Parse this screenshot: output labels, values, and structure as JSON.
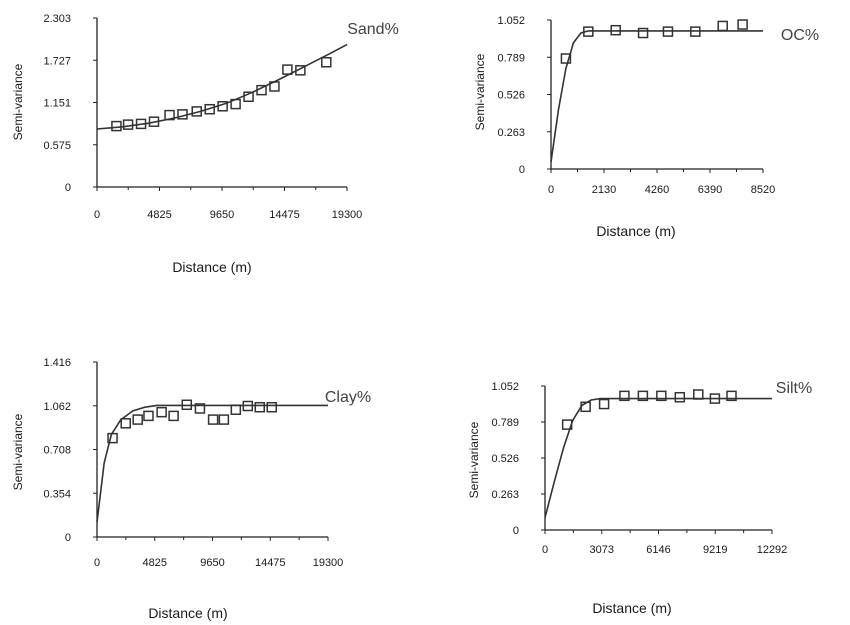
{
  "chart_data": [
    {
      "type": "scatter",
      "title": "Sand%",
      "xlabel": "Distance (m)",
      "ylabel": "Semi-variance",
      "xlim": [
        0,
        19300
      ],
      "ylim": [
        0,
        2.303
      ],
      "xticks": [
        "0",
        "4825",
        "9650",
        "14475",
        "19300"
      ],
      "yticks": [
        "0",
        "0.575",
        "1.151",
        "1.727",
        "2.303"
      ],
      "grid": false,
      "series": [
        {
          "kind": "points",
          "x": [
            1500,
            2400,
            3400,
            4400,
            5600,
            6600,
            7700,
            8700,
            9700,
            10700,
            11700,
            12700,
            13700,
            14700,
            15700,
            17700
          ],
          "y": [
            0.83,
            0.85,
            0.86,
            0.89,
            0.98,
            0.99,
            1.03,
            1.06,
            1.1,
            1.13,
            1.23,
            1.32,
            1.37,
            1.6,
            1.59,
            1.7
          ]
        },
        {
          "kind": "line",
          "x": [
            0,
            2000,
            4000,
            6000,
            8000,
            10000,
            12000,
            14000,
            16000,
            18000,
            19300
          ],
          "y": [
            0.79,
            0.82,
            0.87,
            0.94,
            1.03,
            1.14,
            1.29,
            1.46,
            1.64,
            1.82,
            1.94
          ]
        }
      ]
    },
    {
      "type": "scatter",
      "title": "OC%",
      "xlabel": "Distance (m)",
      "ylabel": "Semi-variance",
      "xlim": [
        0,
        8520
      ],
      "ylim": [
        0,
        1.052
      ],
      "xticks": [
        "0",
        "2130",
        "4260",
        "6390",
        "8520"
      ],
      "yticks": [
        "0",
        "0.263",
        "0.526",
        "0.789",
        "1.052"
      ],
      "grid": false,
      "series": [
        {
          "kind": "points",
          "x": [
            600,
            1500,
            2600,
            3700,
            4700,
            5800,
            6900,
            7700
          ],
          "y": [
            0.78,
            0.97,
            0.98,
            0.96,
            0.97,
            0.97,
            1.01,
            1.02
          ]
        },
        {
          "kind": "line",
          "x": [
            0,
            300,
            600,
            900,
            1200,
            1500,
            1800,
            8520
          ],
          "y": [
            0.05,
            0.42,
            0.71,
            0.89,
            0.96,
            0.975,
            0.975,
            0.975
          ]
        }
      ]
    },
    {
      "type": "scatter",
      "title": "Clay%",
      "xlabel": "Distance (m)",
      "ylabel": "Semi-variance",
      "xlim": [
        0,
        19300
      ],
      "ylim": [
        0,
        1.416
      ],
      "xticks": [
        "0",
        "4825",
        "9650",
        "14475",
        "19300"
      ],
      "yticks": [
        "0",
        "0.354",
        "0.708",
        "1.062",
        "1.416"
      ],
      "grid": false,
      "series": [
        {
          "kind": "points",
          "x": [
            1300,
            2400,
            3400,
            4300,
            5400,
            6400,
            7500,
            8600,
            9700,
            10600,
            11600,
            12600,
            13600,
            14600
          ],
          "y": [
            0.8,
            0.92,
            0.95,
            0.98,
            1.01,
            0.98,
            1.07,
            1.04,
            0.95,
            0.95,
            1.03,
            1.06,
            1.05,
            1.05
          ]
        },
        {
          "kind": "line",
          "x": [
            0,
            600,
            1200,
            2000,
            3000,
            4000,
            5000,
            19300
          ],
          "y": [
            0.12,
            0.6,
            0.83,
            0.95,
            1.02,
            1.05,
            1.065,
            1.065
          ]
        }
      ]
    },
    {
      "type": "scatter",
      "title": "Silt%",
      "xlabel": "Distance (m)",
      "ylabel": "Semi-variance",
      "xlim": [
        0,
        12292
      ],
      "ylim": [
        0,
        1.052
      ],
      "xticks": [
        "0",
        "3073",
        "6146",
        "9219",
        "12292"
      ],
      "yticks": [
        "0",
        "0.263",
        "0.526",
        "0.789",
        "1.052"
      ],
      "grid": false,
      "series": [
        {
          "kind": "points",
          "x": [
            1200,
            2200,
            3200,
            4300,
            5300,
            6300,
            7300,
            8300,
            9200,
            10100
          ],
          "y": [
            0.77,
            0.9,
            0.92,
            0.98,
            0.98,
            0.98,
            0.97,
            0.99,
            0.96,
            0.98
          ]
        },
        {
          "kind": "line",
          "x": [
            0,
            500,
            1000,
            1500,
            2000,
            2500,
            3000,
            12292
          ],
          "y": [
            0.09,
            0.35,
            0.6,
            0.8,
            0.91,
            0.95,
            0.96,
            0.96
          ]
        }
      ]
    }
  ]
}
